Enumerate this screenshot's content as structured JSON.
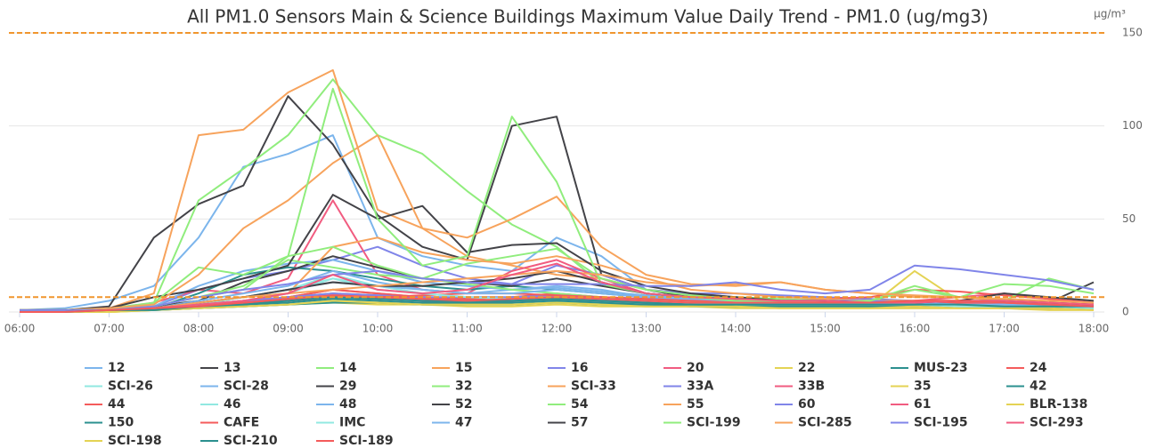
{
  "chart_data": {
    "type": "line",
    "title": "All PM1.0 Sensors Main & Science Buildings Maximum Value Daily Trend - PM1.0 (ug/mg3)",
    "y_unit": "µg/m³",
    "x": [
      6,
      6.5,
      7,
      7.5,
      8,
      8.5,
      9,
      9.5,
      10,
      10.5,
      11,
      11.5,
      12,
      12.5,
      13,
      13.5,
      14,
      14.5,
      15,
      15.5,
      16,
      16.5,
      17,
      17.5,
      18
    ],
    "xlim": [
      6,
      18
    ],
    "xticks": [
      {
        "value": 6,
        "label": "06:00"
      },
      {
        "value": 7,
        "label": "07:00"
      },
      {
        "value": 8,
        "label": "08:00"
      },
      {
        "value": 9,
        "label": "09:00"
      },
      {
        "value": 10,
        "label": "10:00"
      },
      {
        "value": 11,
        "label": "11:00"
      },
      {
        "value": 12,
        "label": "12:00"
      },
      {
        "value": 13,
        "label": "13:00"
      },
      {
        "value": 14,
        "label": "14:00"
      },
      {
        "value": 15,
        "label": "15:00"
      },
      {
        "value": 16,
        "label": "16:00"
      },
      {
        "value": 17,
        "label": "17:00"
      },
      {
        "value": 18,
        "label": "18:00"
      }
    ],
    "ylim": [
      0,
      150
    ],
    "yticks": [
      0,
      50,
      100,
      150
    ],
    "grid": true,
    "plot_lines": [
      {
        "value": 150,
        "color": "#f0962e"
      },
      {
        "value": 8,
        "color": "#f0962e"
      }
    ],
    "series": [
      {
        "name": "12",
        "color": "#7cb5ec",
        "values": [
          1,
          2,
          6,
          14,
          40,
          78,
          85,
          95,
          40,
          30,
          25,
          22,
          40,
          30,
          12,
          8,
          6,
          5,
          5,
          4,
          4,
          4,
          3,
          3,
          3
        ]
      },
      {
        "name": "13",
        "color": "#434348",
        "values": [
          1,
          1,
          3,
          40,
          58,
          68,
          116,
          90,
          52,
          35,
          28,
          100,
          105,
          20,
          12,
          8,
          6,
          5,
          5,
          4,
          4,
          4,
          6,
          5,
          16
        ]
      },
      {
        "name": "14",
        "color": "#90ed7d",
        "values": [
          1,
          1,
          2,
          5,
          60,
          77,
          95,
          125,
          95,
          85,
          65,
          47,
          35,
          15,
          10,
          8,
          7,
          6,
          5,
          5,
          5,
          4,
          4,
          3,
          3
        ]
      },
      {
        "name": "15",
        "color": "#f7a35c",
        "values": [
          1,
          1,
          2,
          10,
          95,
          98,
          118,
          130,
          55,
          45,
          30,
          25,
          20,
          18,
          12,
          10,
          8,
          6,
          5,
          5,
          4,
          4,
          3,
          3,
          2
        ]
      },
      {
        "name": "16",
        "color": "#8085e9",
        "values": [
          1,
          1,
          2,
          3,
          12,
          18,
          22,
          28,
          35,
          25,
          18,
          15,
          25,
          20,
          12,
          10,
          10,
          9,
          8,
          7,
          6,
          6,
          5,
          5,
          4
        ]
      },
      {
        "name": "20",
        "color": "#f15c80",
        "values": [
          1,
          1,
          1,
          5,
          12,
          10,
          18,
          60,
          20,
          12,
          10,
          22,
          28,
          18,
          10,
          8,
          7,
          6,
          6,
          5,
          6,
          8,
          10,
          7,
          5
        ]
      },
      {
        "name": "22",
        "color": "#e4d354",
        "values": [
          0,
          0,
          1,
          2,
          4,
          6,
          8,
          10,
          9,
          8,
          7,
          6,
          6,
          5,
          4,
          4,
          3,
          3,
          3,
          3,
          22,
          6,
          4,
          3,
          2
        ]
      },
      {
        "name": "MUS-23",
        "color": "#2b908f",
        "values": [
          0,
          0,
          1,
          2,
          10,
          20,
          24,
          22,
          18,
          14,
          12,
          14,
          12,
          10,
          8,
          7,
          6,
          5,
          5,
          5,
          5,
          5,
          4,
          4,
          3
        ]
      },
      {
        "name": "24",
        "color": "#f45b5b",
        "values": [
          0,
          0,
          1,
          2,
          4,
          6,
          8,
          12,
          10,
          8,
          7,
          8,
          9,
          8,
          7,
          6,
          6,
          6,
          7,
          8,
          12,
          11,
          9,
          7,
          5
        ]
      },
      {
        "name": "SCI-26",
        "color": "#91e8e1",
        "values": [
          0,
          0,
          1,
          2,
          5,
          8,
          12,
          20,
          14,
          10,
          8,
          7,
          6,
          5,
          4,
          4,
          3,
          3,
          3,
          3,
          3,
          3,
          2,
          2,
          2
        ]
      },
      {
        "name": "SCI-28",
        "color": "#7cb5ec",
        "values": [
          0,
          0,
          1,
          3,
          14,
          22,
          26,
          28,
          22,
          16,
          14,
          12,
          13,
          11,
          9,
          8,
          7,
          6,
          6,
          5,
          5,
          5,
          4,
          4,
          3
        ]
      },
      {
        "name": "29",
        "color": "#434348",
        "values": [
          0,
          0,
          1,
          3,
          6,
          16,
          22,
          30,
          24,
          18,
          16,
          14,
          18,
          14,
          10,
          8,
          7,
          6,
          6,
          5,
          5,
          5,
          4,
          4,
          3
        ]
      },
      {
        "name": "32",
        "color": "#90ed7d",
        "values": [
          0,
          0,
          1,
          3,
          8,
          14,
          28,
          24,
          20,
          18,
          26,
          30,
          34,
          18,
          12,
          9,
          8,
          7,
          6,
          6,
          14,
          8,
          6,
          18,
          12
        ]
      },
      {
        "name": "SCI-33",
        "color": "#f7a35c",
        "values": [
          0,
          0,
          1,
          2,
          5,
          8,
          10,
          35,
          40,
          32,
          28,
          26,
          30,
          25,
          18,
          12,
          10,
          8,
          7,
          6,
          6,
          6,
          5,
          4,
          3
        ]
      },
      {
        "name": "33A",
        "color": "#8085e9",
        "values": [
          0,
          0,
          1,
          2,
          4,
          6,
          8,
          10,
          9,
          8,
          7,
          6,
          7,
          6,
          5,
          5,
          4,
          4,
          4,
          4,
          4,
          4,
          3,
          3,
          2
        ]
      },
      {
        "name": "33B",
        "color": "#f15c80",
        "values": [
          0,
          0,
          1,
          2,
          3,
          5,
          6,
          8,
          7,
          6,
          5,
          6,
          7,
          6,
          5,
          5,
          4,
          4,
          4,
          3,
          3,
          3,
          3,
          2,
          2
        ]
      },
      {
        "name": "35",
        "color": "#e4d354",
        "values": [
          0,
          0,
          0,
          1,
          2,
          3,
          4,
          6,
          5,
          4,
          4,
          4,
          5,
          4,
          3,
          3,
          3,
          2,
          2,
          2,
          2,
          2,
          2,
          2,
          1
        ]
      },
      {
        "name": "42",
        "color": "#2b908f",
        "values": [
          0,
          0,
          1,
          1,
          3,
          4,
          5,
          7,
          6,
          5,
          5,
          5,
          6,
          5,
          4,
          4,
          3,
          3,
          3,
          3,
          3,
          3,
          2,
          2,
          2
        ]
      },
      {
        "name": "44",
        "color": "#f45b5b",
        "values": [
          0,
          0,
          1,
          2,
          4,
          6,
          8,
          12,
          10,
          8,
          7,
          8,
          10,
          8,
          6,
          5,
          5,
          5,
          5,
          5,
          6,
          6,
          5,
          4,
          3
        ]
      },
      {
        "name": "46",
        "color": "#91e8e1",
        "values": [
          0,
          0,
          1,
          2,
          4,
          6,
          10,
          18,
          12,
          10,
          8,
          7,
          8,
          7,
          6,
          5,
          4,
          4,
          4,
          4,
          4,
          3,
          3,
          3,
          2
        ]
      },
      {
        "name": "48",
        "color": "#7cb5ec",
        "values": [
          0,
          0,
          1,
          2,
          6,
          10,
          14,
          22,
          16,
          12,
          10,
          12,
          14,
          12,
          8,
          6,
          5,
          5,
          5,
          4,
          4,
          4,
          3,
          3,
          3
        ]
      },
      {
        "name": "52",
        "color": "#434348",
        "values": [
          1,
          1,
          2,
          8,
          12,
          18,
          25,
          63,
          50,
          57,
          32,
          36,
          37,
          22,
          14,
          10,
          8,
          6,
          5,
          5,
          4,
          6,
          10,
          8,
          6
        ]
      },
      {
        "name": "54",
        "color": "#90ed7d",
        "values": [
          1,
          1,
          1,
          5,
          24,
          20,
          30,
          35,
          25,
          18,
          15,
          12,
          10,
          8,
          7,
          6,
          6,
          5,
          5,
          4,
          4,
          4,
          4,
          3,
          3
        ]
      },
      {
        "name": "55",
        "color": "#f7a35c",
        "values": [
          1,
          1,
          2,
          4,
          20,
          45,
          60,
          80,
          95,
          45,
          40,
          50,
          62,
          35,
          20,
          15,
          14,
          16,
          12,
          10,
          8,
          8,
          6,
          5,
          4
        ]
      },
      {
        "name": "60",
        "color": "#8085e9",
        "values": [
          0,
          0,
          1,
          2,
          4,
          6,
          8,
          10,
          9,
          8,
          8,
          8,
          9,
          8,
          7,
          7,
          6,
          6,
          6,
          6,
          5,
          5,
          5,
          4,
          4
        ]
      },
      {
        "name": "61",
        "color": "#f15c80",
        "values": [
          0,
          0,
          1,
          2,
          4,
          5,
          7,
          9,
          8,
          7,
          6,
          7,
          8,
          7,
          6,
          5,
          5,
          4,
          4,
          4,
          4,
          4,
          3,
          3,
          2
        ]
      },
      {
        "name": "BLR-138",
        "color": "#e4d354",
        "values": [
          0,
          0,
          0,
          1,
          2,
          3,
          4,
          5,
          4,
          4,
          3,
          3,
          4,
          3,
          3,
          3,
          2,
          2,
          2,
          2,
          2,
          2,
          2,
          1,
          1
        ]
      },
      {
        "name": "150",
        "color": "#2b908f",
        "values": [
          0,
          0,
          1,
          1,
          2,
          3,
          4,
          5,
          5,
          4,
          4,
          4,
          5,
          4,
          4,
          3,
          3,
          3,
          3,
          3,
          3,
          3,
          2,
          2,
          2
        ]
      },
      {
        "name": "CAFE",
        "color": "#f45b5b",
        "values": [
          0,
          0,
          1,
          2,
          3,
          5,
          6,
          8,
          8,
          9,
          10,
          10,
          9,
          8,
          7,
          6,
          6,
          5,
          5,
          5,
          5,
          5,
          4,
          4,
          3
        ]
      },
      {
        "name": "IMC",
        "color": "#91e8e1",
        "values": [
          0,
          0,
          1,
          2,
          4,
          8,
          12,
          18,
          14,
          10,
          8,
          7,
          8,
          7,
          6,
          5,
          4,
          4,
          4,
          4,
          4,
          3,
          3,
          3,
          2
        ]
      },
      {
        "name": "47",
        "color": "#7cb5ec",
        "values": [
          0,
          0,
          1,
          2,
          5,
          8,
          12,
          16,
          14,
          12,
          10,
          10,
          12,
          10,
          8,
          7,
          6,
          5,
          5,
          5,
          5,
          4,
          4,
          3,
          3
        ]
      },
      {
        "name": "57",
        "color": "#434348",
        "values": [
          0,
          0,
          1,
          2,
          5,
          8,
          12,
          16,
          14,
          14,
          16,
          18,
          22,
          16,
          10,
          8,
          7,
          6,
          6,
          5,
          5,
          6,
          6,
          5,
          4
        ]
      },
      {
        "name": "SCI-199",
        "color": "#90ed7d",
        "values": [
          1,
          1,
          1,
          3,
          8,
          12,
          30,
          120,
          50,
          25,
          30,
          105,
          70,
          15,
          10,
          8,
          6,
          6,
          5,
          6,
          12,
          8,
          15,
          14,
          10
        ]
      },
      {
        "name": "SCI-285",
        "color": "#f7a35c",
        "values": [
          0,
          0,
          1,
          2,
          5,
          8,
          10,
          12,
          14,
          16,
          18,
          20,
          22,
          20,
          16,
          14,
          15,
          16,
          12,
          10,
          9,
          8,
          7,
          6,
          5
        ]
      },
      {
        "name": "SCI-195",
        "color": "#8085e9",
        "values": [
          1,
          1,
          1,
          3,
          8,
          12,
          15,
          20,
          22,
          18,
          16,
          15,
          15,
          15,
          14,
          14,
          16,
          12,
          10,
          12,
          25,
          23,
          20,
          17,
          12
        ]
      },
      {
        "name": "SCI-293",
        "color": "#f15c80",
        "values": [
          0,
          0,
          1,
          2,
          4,
          6,
          10,
          20,
          12,
          10,
          12,
          20,
          26,
          16,
          10,
          8,
          7,
          6,
          6,
          5,
          5,
          6,
          6,
          5,
          4
        ]
      },
      {
        "name": "SCI-198",
        "color": "#e4d354",
        "values": [
          0,
          0,
          0,
          1,
          2,
          3,
          4,
          6,
          5,
          4,
          4,
          4,
          5,
          4,
          3,
          3,
          3,
          2,
          2,
          2,
          3,
          2,
          2,
          2,
          1
        ]
      },
      {
        "name": "SCI-210",
        "color": "#2b908f",
        "values": [
          0,
          0,
          1,
          1,
          3,
          4,
          6,
          8,
          7,
          6,
          6,
          6,
          7,
          6,
          5,
          4,
          4,
          4,
          4,
          4,
          4,
          4,
          3,
          3,
          3
        ]
      },
      {
        "name": "SCI-189",
        "color": "#f45b5b",
        "values": [
          0,
          0,
          1,
          2,
          3,
          5,
          7,
          9,
          8,
          7,
          6,
          7,
          8,
          7,
          6,
          5,
          5,
          5,
          5,
          5,
          6,
          6,
          5,
          4,
          3
        ]
      }
    ]
  }
}
